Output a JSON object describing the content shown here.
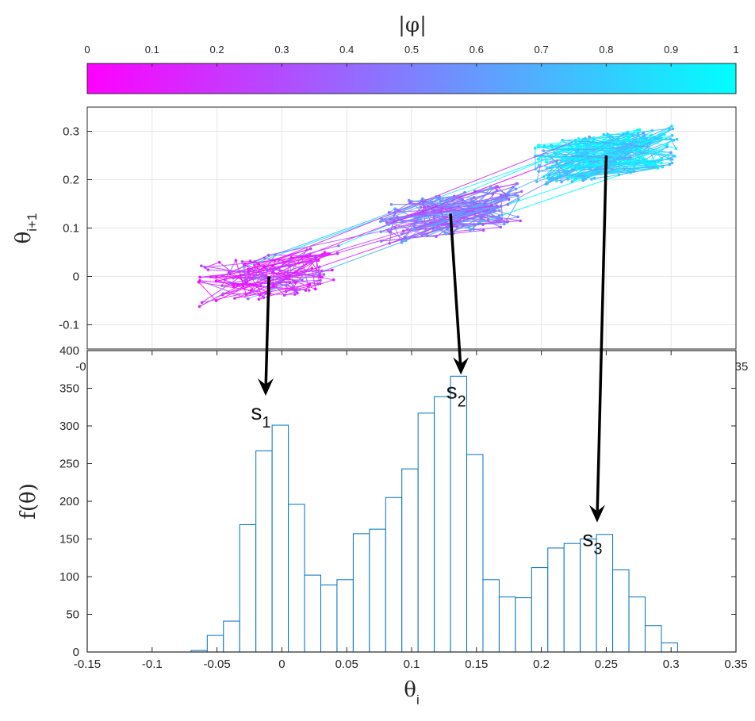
{
  "chart_data": [
    {
      "type": "colorbar",
      "title": "|φ|",
      "range": [
        0,
        1
      ],
      "ticks": [
        "0",
        "0.1",
        "0.2",
        "0.3",
        "0.4",
        "0.5",
        "0.6",
        "0.7",
        "0.8",
        "0.9",
        "1"
      ],
      "colors": [
        "#ff00ff",
        "#00ffff"
      ]
    },
    {
      "type": "scatter",
      "xlabel": "θ",
      "xlabel_sub": "i",
      "ylabel": "θ",
      "ylabel_sub": "i+1",
      "xlim": [
        -0.15,
        0.35
      ],
      "ylim": [
        -0.15,
        0.35
      ],
      "yticks": [
        "-0.1",
        "0",
        "0.1",
        "0.2",
        "0.3"
      ],
      "grid": true,
      "attractor_states": [
        {
          "x": -0.01,
          "y": 0.0
        },
        {
          "x": 0.13,
          "y": 0.13
        },
        {
          "x": 0.25,
          "y": 0.25
        }
      ]
    },
    {
      "type": "bar",
      "title": "",
      "xlabel": "θ",
      "xlabel_sub": "i",
      "ylabel": "f(θ)",
      "xlim": [
        -0.15,
        0.35
      ],
      "ylim": [
        0,
        400
      ],
      "xticks": [
        "-0.15",
        "-0.1",
        "-0.05",
        "0",
        "0.05",
        "0.1",
        "0.15",
        "0.2",
        "0.25",
        "0.3",
        "0.35"
      ],
      "yticks": [
        "0",
        "50",
        "100",
        "150",
        "200",
        "250",
        "300",
        "350",
        "400"
      ],
      "bin_start": -0.07,
      "bin_width": 0.0125,
      "values": [
        2,
        22,
        41,
        169,
        267,
        301,
        196,
        102,
        89,
        96,
        157,
        163,
        205,
        243,
        317,
        339,
        366,
        262,
        96,
        73,
        72,
        112,
        138,
        144,
        150,
        156,
        109,
        73,
        35,
        12
      ],
      "color": "#0072bd",
      "annotations": [
        {
          "label": "s",
          "sub": "1",
          "x": -0.0125,
          "y": 340
        },
        {
          "label": "s",
          "sub": "2",
          "x": 0.138,
          "y": 368
        },
        {
          "label": "s",
          "sub": "3",
          "x": 0.243,
          "y": 172
        }
      ]
    }
  ]
}
